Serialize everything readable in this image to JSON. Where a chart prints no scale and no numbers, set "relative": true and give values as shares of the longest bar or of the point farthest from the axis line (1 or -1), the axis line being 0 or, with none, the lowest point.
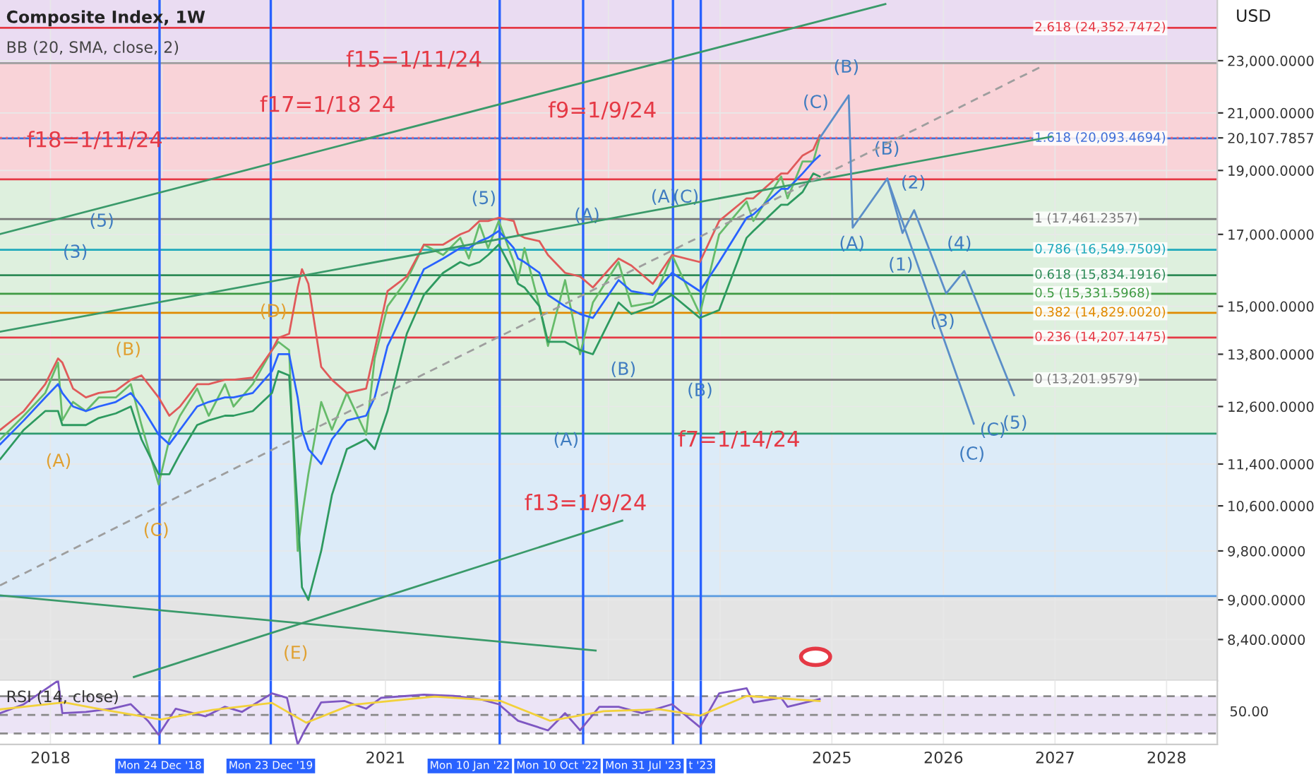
{
  "chart_data": [
    {
      "type": "line",
      "title": "Composite Index, 1W",
      "subtitle": "BB (20, SMA, close, 2)",
      "ylabel": "USD",
      "log": "y",
      "grid": true,
      "tick_labels": "y",
      "x": [
        "2017-07-21",
        "2017-10-06",
        "2017-12-15",
        "2018-01-26",
        "2018-02-09",
        "2018-03-16",
        "2018-04-27",
        "2018-06-08",
        "2018-08-03",
        "2018-09-21",
        "2018-10-26",
        "2018-12-21",
        "2019-01-25",
        "2019-03-01",
        "2019-04-26",
        "2019-06-03",
        "2019-07-26",
        "2019-08-23",
        "2019-10-25",
        "2019-12-27",
        "2020-01-17",
        "2020-02-21",
        "2020-03-20",
        "2020-04-03",
        "2020-04-24",
        "2020-06-05",
        "2020-07-10",
        "2020-08-28",
        "2020-10-30",
        "2020-11-27",
        "2021-01-08",
        "2021-03-12",
        "2021-05-07",
        "2021-07-09",
        "2021-09-03",
        "2021-10-01",
        "2021-11-05",
        "2021-12-03",
        "2022-01-07",
        "2022-02-25",
        "2022-03-11",
        "2022-04-01",
        "2022-05-20",
        "2022-06-17",
        "2022-08-12",
        "2022-09-30",
        "2022-11-11",
        "2023-02-03",
        "2023-03-17",
        "2023-05-26",
        "2023-07-28",
        "2023-10-27",
        "2023-12-29",
        "2024-03-28",
        "2024-04-19",
        "2024-07-19",
        "2024-08-09",
        "2024-09-27",
        "2024-11-01",
        "2024-11-22"
      ],
      "xlim": [
        "2017-07-20",
        "2028-06-15"
      ],
      "xticks": [
        {
          "value": "2018-01-01",
          "label": null
        },
        {
          "value": "2019-01-01",
          "label": null
        },
        {
          "value": "2020-01-01",
          "label": null
        },
        {
          "value": "2021-01-01",
          "label": null
        },
        {
          "value": "2022-01-01",
          "label": null
        },
        {
          "value": "2023-01-01",
          "label": null
        },
        {
          "value": "2024-01-01",
          "label": null
        },
        {
          "value": "2025-01-01",
          "label": null
        },
        {
          "value": "2026-01-01",
          "label": null
        },
        {
          "value": "2027-01-01",
          "label": null
        },
        {
          "value": "2028-01-01",
          "label": null
        }
      ],
      "ylim": [
        7820,
        25560
      ],
      "yticks": [
        {
          "value": 8400,
          "label": "8,400.0000"
        },
        {
          "value": 9000,
          "label": "9,000.0000"
        },
        {
          "value": 9800,
          "label": "9,800.0000"
        },
        {
          "value": 10600,
          "label": "10,600.0000"
        },
        {
          "value": 11400,
          "label": "11,400.0000"
        },
        {
          "value": 12600,
          "label": "12,600.0000"
        },
        {
          "value": 13800,
          "label": "13,800.0000"
        },
        {
          "value": 15000,
          "label": "15,000.0000"
        },
        {
          "value": 17000,
          "label": "17,000.0000"
        },
        {
          "value": 19000,
          "label": "19,000.0000"
        },
        {
          "value": 20107.7857,
          "label": "20,107.7857"
        },
        {
          "value": 21000,
          "label": "21,000.0000"
        },
        {
          "value": 23000,
          "label": "23,000.0000"
        }
      ],
      "series": [
        {
          "color": "#66bb6a",
          "values": [
            11900,
            12400,
            12900,
            13600,
            12300,
            12700,
            12500,
            12800,
            12800,
            13100,
            12200,
            11000,
            11900,
            12400,
            13000,
            12400,
            13100,
            12600,
            13100,
            13900,
            14100,
            13900,
            9800,
            10400,
            11200,
            12700,
            12100,
            12900,
            12000,
            13700,
            15000,
            15700,
            16700,
            16400,
            16900,
            16300,
            17300,
            16600,
            17400,
            16200,
            15700,
            16600,
            15000,
            14000,
            15700,
            13800,
            15100,
            16200,
            15000,
            15100,
            16400,
            14800,
            17000,
            18000,
            17400,
            18800,
            18100,
            19300,
            19300,
            20100
          ]
        },
        {
          "color": "#2962ff",
          "values": [
            11800,
            12300,
            12800,
            13100,
            12900,
            12600,
            12500,
            12600,
            12700,
            12900,
            12600,
            12000,
            11800,
            12100,
            12600,
            12700,
            12800,
            12800,
            12900,
            13400,
            13800,
            13800,
            12800,
            12100,
            11700,
            11400,
            11900,
            12300,
            12400,
            12800,
            14000,
            15000,
            16000,
            16300,
            16600,
            16600,
            16800,
            16900,
            17100,
            16600,
            16300,
            16200,
            15900,
            15300,
            15000,
            14800,
            14700,
            15700,
            15400,
            15300,
            15900,
            15400,
            16200,
            17500,
            17600,
            18400,
            18400,
            18900,
            19300,
            19500
          ]
        },
        {
          "color": "#2e9a60",
          "values": [
            11500,
            12100,
            12500,
            12500,
            12200,
            12200,
            12200,
            12350,
            12450,
            12600,
            11900,
            11200,
            11200,
            11600,
            12200,
            12300,
            12400,
            12400,
            12500,
            12900,
            13400,
            13300,
            10500,
            9200,
            9000,
            9800,
            10800,
            11700,
            11900,
            11700,
            12500,
            14300,
            15300,
            15900,
            16200,
            16100,
            16200,
            16400,
            16700,
            15900,
            15600,
            15500,
            15000,
            14100,
            14100,
            13900,
            13800,
            15100,
            14800,
            15000,
            15300,
            14700,
            14900,
            16900,
            17100,
            17900,
            17900,
            18300,
            18900,
            18800
          ]
        },
        {
          "color": "#e05a5a",
          "values": [
            12100,
            12500,
            13100,
            13700,
            13600,
            13000,
            12800,
            12900,
            12950,
            13200,
            13300,
            12800,
            12400,
            12600,
            13100,
            13100,
            13200,
            13200,
            13250,
            13900,
            14200,
            14300,
            15500,
            16000,
            15600,
            13500,
            13200,
            12900,
            13000,
            13900,
            15400,
            15800,
            16700,
            16700,
            17000,
            17100,
            17400,
            17400,
            17500,
            17400,
            17000,
            16900,
            16800,
            16400,
            15900,
            15800,
            15500,
            16300,
            16100,
            15600,
            16400,
            16200,
            17400,
            18100,
            18100,
            18900,
            18900,
            19500,
            19700,
            20200
          ]
        },
        {
          "color": "#3a9a6a",
          "x": [
            "2017-07-20",
            "2025-06-25"
          ],
          "values": [
            17010,
            25380
          ]
        },
        {
          "color": "#3a9a6a",
          "x": [
            "2017-07-20",
            "2026-12-20"
          ],
          "values": [
            14350,
            20150
          ]
        },
        {
          "color": "#3a9a6a",
          "x": [
            "2017-07-20",
            "2022-11-20"
          ],
          "values": [
            9070,
            8240
          ]
        },
        {
          "color": "#3a9a6a",
          "x": [
            "2018-10-01",
            "2023-02-15"
          ],
          "values": [
            7870,
            10330
          ]
        },
        {
          "color": "#9e9e9e",
          "line_style": "dashed",
          "x": [
            "2017-07-20",
            "2026-11-20"
          ],
          "values": [
            9230,
            22780
          ]
        },
        {
          "color": "#5b8ec8",
          "x": [
            "2024-11-22",
            "2025-02-25",
            "2025-03-10",
            "2025-07-01",
            "2026-04-10"
          ],
          "values": [
            20100,
            21650,
            17200,
            18730,
            12230
          ]
        },
        {
          "color": "#5b8ec8",
          "x": [
            "2025-07-01",
            "2025-08-20",
            "2025-09-27",
            "2026-01-10",
            "2026-03-10",
            "2026-08-20"
          ],
          "values": [
            18730,
            17040,
            17730,
            15340,
            15950,
            12850
          ]
        }
      ],
      "bands": [
        {
          "axis": "y",
          "from": 22900,
          "to": 25560,
          "label": null,
          "color": "#eadcf2"
        },
        {
          "axis": "y",
          "from": 18710,
          "to": 22900,
          "label": null,
          "color": "#f9d3d8"
        },
        {
          "axis": "y",
          "from": 12020,
          "to": 18710,
          "label": null,
          "color": "#def0de"
        },
        {
          "axis": "y",
          "from": 9060,
          "to": 12020,
          "label": null,
          "color": "#dcebf8"
        },
        {
          "axis": "y",
          "from": 7820,
          "to": 9060,
          "label": null,
          "color": "#e4e4e4"
        }
      ],
      "ref_lines": [
        {
          "axis": "x",
          "value": "2018-12-24",
          "label": null,
          "color": "#2962ff"
        },
        {
          "axis": "x",
          "value": "2019-12-23",
          "label": null,
          "color": "#2962ff"
        },
        {
          "axis": "x",
          "value": "2022-01-10",
          "label": null,
          "color": "#2962ff"
        },
        {
          "axis": "x",
          "value": "2022-10-10",
          "label": null,
          "color": "#2962ff"
        },
        {
          "axis": "x",
          "value": "2023-07-31",
          "label": null,
          "color": "#2962ff"
        },
        {
          "axis": "x",
          "value": "2023-10-30",
          "label": null,
          "color": "#2962ff"
        },
        {
          "axis": "y",
          "value": 24352.7472,
          "label": "2.618 (24,352.7472)",
          "color": "#e53945"
        },
        {
          "axis": "y",
          "value": 22900,
          "label": null,
          "color": "#9e9e9e"
        },
        {
          "axis": "y",
          "value": 20093.4694,
          "label": "1.618 (20,093.4694)",
          "color": "#3f6fd8"
        },
        {
          "axis": "y",
          "value": 20107.7857,
          "label": null,
          "color": "#f06070",
          "line_style": "dotted"
        },
        {
          "axis": "y",
          "value": 18710,
          "label": null,
          "color": "#e53945"
        },
        {
          "axis": "y",
          "value": 17461.2357,
          "label": "1 (17,461.2357)",
          "color": "#787878"
        },
        {
          "axis": "y",
          "value": 16549.7509,
          "label": "0.786 (16,549.7509)",
          "color": "#1fa9bb"
        },
        {
          "axis": "y",
          "value": 15834.1916,
          "label": "0.618 (15,834.1916)",
          "color": "#2e8b57"
        },
        {
          "axis": "y",
          "value": 15331.5968,
          "label": "0.5 (15,331.5968)",
          "color": "#3f9a43"
        },
        {
          "axis": "y",
          "value": 14829.002,
          "label": "0.382 (14,829.0020)",
          "color": "#e08a00"
        },
        {
          "axis": "y",
          "value": 14207.1475,
          "label": "0.236 (14,207.1475)",
          "color": "#e53945"
        },
        {
          "axis": "y",
          "value": 13201.9579,
          "label": "0 (13,201.9579)",
          "color": "#787878"
        },
        {
          "axis": "y",
          "value": 12020,
          "label": null,
          "color": "#2e9a70"
        },
        {
          "axis": "y",
          "value": 9060,
          "label": null,
          "color": "#5a9be0"
        }
      ],
      "annotations": [
        "f18=1/11/24",
        "f17=1/18 24",
        "f15=1/11/24",
        "f9=1/9/24",
        "f13=1/9/24",
        "f7=1/14/24",
        "(5)",
        "(3)",
        "(B)",
        "(D)",
        "(A)",
        "(C)",
        "(E)",
        "(5)",
        "(A)",
        "(A)",
        "(C)",
        "(B)",
        "(A)",
        "(B)",
        "(C)",
        "(B)",
        "(B)",
        "(A)",
        "(2)",
        "(1)",
        "(4)",
        "(3)",
        "(C)",
        "(C)",
        "(5)"
      ]
    },
    {
      "type": "line",
      "title": "RSI (14, close)",
      "grid": true,
      "relative": true,
      "annotations": [
        "50.00"
      ],
      "xlim": [
        "2017-07-20",
        "2028-06-15"
      ],
      "xticks": [
        {
          "value": "2018-01-01",
          "label": "2018"
        },
        {
          "value": "2021-01-01",
          "label": "2021"
        },
        {
          "value": "2025-01-01",
          "label": "2025"
        },
        {
          "value": "2026-01-01",
          "label": "2026"
        },
        {
          "value": "2027-01-01",
          "label": "2027"
        },
        {
          "value": "2028-01-01",
          "label": "2028"
        }
      ],
      "series": [
        {
          "color": "#7e57c2",
          "x": [
            "2017-07-21",
            "2017-10-06",
            "2018-01-26",
            "2018-02-09",
            "2018-04-27",
            "2018-07-20",
            "2018-09-21",
            "2018-11-16",
            "2018-12-21",
            "2019-02-15",
            "2019-05-24",
            "2019-07-26",
            "2019-09-20",
            "2019-12-27",
            "2020-02-14",
            "2020-03-20",
            "2020-04-10",
            "2020-06-05",
            "2020-08-21",
            "2020-10-30",
            "2020-12-18",
            "2021-03-12",
            "2021-05-07",
            "2021-08-13",
            "2021-11-05",
            "2022-01-07",
            "2022-03-11",
            "2022-06-17",
            "2022-08-12",
            "2022-09-30",
            "2022-12-02",
            "2023-02-03",
            "2023-04-21",
            "2023-07-28",
            "2023-10-27",
            "2023-12-29",
            "2024-03-28",
            "2024-04-19",
            "2024-07-19",
            "2024-08-09",
            "2024-11-22"
          ],
          "values": [
            0.49,
            0.63,
            1.0,
            0.49,
            0.51,
            0.56,
            0.63,
            0.37,
            0.15,
            0.56,
            0.44,
            0.59,
            0.51,
            0.8,
            0.73,
            0.0,
            0.2,
            0.66,
            0.68,
            0.56,
            0.73,
            0.76,
            0.78,
            0.76,
            0.71,
            0.63,
            0.37,
            0.22,
            0.49,
            0.22,
            0.59,
            0.59,
            0.49,
            0.63,
            0.27,
            0.8,
            0.88,
            0.66,
            0.73,
            0.59,
            0.71
          ]
        },
        {
          "color": "#f2d13a",
          "x": [
            "2017-07-21",
            "2018-02-15",
            "2018-06-15",
            "2018-12-28",
            "2019-06-14",
            "2019-12-27",
            "2020-04-17",
            "2020-09-11",
            "2021-06-11",
            "2022-01-14",
            "2022-06-24",
            "2022-12-16",
            "2023-06-16",
            "2023-10-27",
            "2024-03-29",
            "2024-11-22"
          ],
          "values": [
            0.55,
            0.66,
            0.55,
            0.39,
            0.54,
            0.65,
            0.34,
            0.62,
            0.75,
            0.68,
            0.37,
            0.52,
            0.55,
            0.45,
            0.76,
            0.68
          ]
        }
      ],
      "bands": [
        {
          "axis": "y",
          "from": 0.171,
          "to": 0.756,
          "label": null,
          "color": "#ece4f6"
        }
      ],
      "ref_lines": [
        {
          "axis": "y",
          "value": 0.756,
          "label": null,
          "color": "#8a8a8a",
          "line_style": "dashed"
        },
        {
          "axis": "y",
          "value": 0.463,
          "label": null,
          "color": "#8a8a8a",
          "line_style": "dashed"
        },
        {
          "axis": "y",
          "value": 0.171,
          "label": null,
          "color": "#8a8a8a",
          "line_style": "dashed"
        },
        {
          "axis": "x",
          "value": "2018-12-24",
          "label": "Mon 24 Dec '18",
          "color": "#2962ff"
        },
        {
          "axis": "x",
          "value": "2019-12-23",
          "label": "Mon 23 Dec '19",
          "color": "#2962ff"
        },
        {
          "axis": "x",
          "value": "2022-01-10",
          "label": "Mon 10 Jan '22",
          "color": "#2962ff"
        },
        {
          "axis": "x",
          "value": "2022-10-10",
          "label": "Mon 10 Oct '22",
          "color": "#2962ff"
        },
        {
          "axis": "x",
          "value": "2023-07-31",
          "label": "Mon 31 Jul '23",
          "color": "#2962ff"
        },
        {
          "axis": "x",
          "value": "2023-10-30",
          "label": "t '23",
          "color": "#2962ff"
        }
      ]
    }
  ]
}
